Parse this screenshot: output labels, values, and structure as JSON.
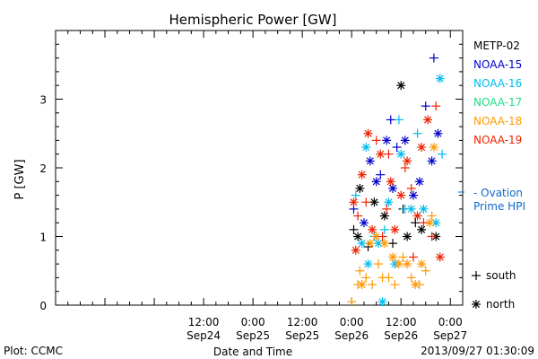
{
  "chart_data": {
    "type": "scatter",
    "title": "Hemispheric Power [GW]",
    "ylabel": "P [GW]",
    "xlabel": "Date and Time",
    "ylim": [
      0,
      4
    ],
    "xlim": [
      "2013-09-23 00:00",
      "2013-09-27 03:00"
    ],
    "y_ticks": [
      "0",
      "1",
      "2",
      "3"
    ],
    "x_ticks": [
      {
        "time": "12:00",
        "date": "Sep24"
      },
      {
        "time": "0:00",
        "date": "Sep25"
      },
      {
        "time": "12:00",
        "date": "Sep25"
      },
      {
        "time": "0:00",
        "date": "Sep26"
      },
      {
        "time": "12:00",
        "date": "Sep26"
      },
      {
        "time": "0:00",
        "date": "Sep27"
      }
    ],
    "legend": [
      "METP-02",
      "NOAA-15",
      "NOAA-16",
      "NOAA-17",
      "NOAA-18",
      "NOAA-19"
    ],
    "marker_legend": {
      "south": "south",
      "north": "north"
    },
    "ovation_label": "- Ovation Prime HPI",
    "colors": {
      "METP-02": "#000000",
      "NOAA-15": "#0000cc",
      "NOAA-16": "#00bbee",
      "NOAA-17": "#22dd88",
      "NOAA-18": "#ff9900",
      "NOAA-19": "#ee2200",
      "ovation": "#1166cc",
      "axis": "#000000"
    },
    "series": [
      {
        "name": "METP-02",
        "points": [
          {
            "x": "2013-09-26 00:30",
            "y": 1.1,
            "m": "south"
          },
          {
            "x": "2013-09-26 01:30",
            "y": 1.0,
            "m": "north"
          },
          {
            "x": "2013-09-26 02:00",
            "y": 1.7,
            "m": "north"
          },
          {
            "x": "2013-09-26 04:00",
            "y": 0.85,
            "m": "south"
          },
          {
            "x": "2013-09-26 05:30",
            "y": 1.5,
            "m": "north"
          },
          {
            "x": "2013-09-26 08:00",
            "y": 1.3,
            "m": "north"
          },
          {
            "x": "2013-09-26 10:00",
            "y": 0.9,
            "m": "south"
          },
          {
            "x": "2013-09-26 12:00",
            "y": 3.2,
            "m": "north"
          },
          {
            "x": "2013-09-26 13:30",
            "y": 1.0,
            "m": "north"
          },
          {
            "x": "2013-09-26 15:30",
            "y": 1.2,
            "m": "south"
          },
          {
            "x": "2013-09-26 17:00",
            "y": 1.1,
            "m": "north"
          },
          {
            "x": "2013-09-26 20:30",
            "y": 1.0,
            "m": "north"
          },
          {
            "x": "2013-09-26 12:30",
            "y": 1.4,
            "m": "south"
          }
        ]
      },
      {
        "name": "NOAA-15",
        "points": [
          {
            "x": "2013-09-26 00:30",
            "y": 1.4,
            "m": "south"
          },
          {
            "x": "2013-09-26 03:00",
            "y": 1.2,
            "m": "north"
          },
          {
            "x": "2013-09-26 04:30",
            "y": 2.1,
            "m": "north"
          },
          {
            "x": "2013-09-26 06:00",
            "y": 1.8,
            "m": "north"
          },
          {
            "x": "2013-09-26 07:00",
            "y": 1.9,
            "m": "south"
          },
          {
            "x": "2013-09-26 08:30",
            "y": 2.4,
            "m": "north"
          },
          {
            "x": "2013-09-26 09:30",
            "y": 2.7,
            "m": "south"
          },
          {
            "x": "2013-09-26 10:00",
            "y": 1.7,
            "m": "north"
          },
          {
            "x": "2013-09-26 11:00",
            "y": 2.3,
            "m": "south"
          },
          {
            "x": "2013-09-26 13:00",
            "y": 2.4,
            "m": "north"
          },
          {
            "x": "2013-09-26 15:00",
            "y": 1.6,
            "m": "north"
          },
          {
            "x": "2013-09-26 16:30",
            "y": 1.8,
            "m": "north"
          },
          {
            "x": "2013-09-26 18:00",
            "y": 2.9,
            "m": "south"
          },
          {
            "x": "2013-09-26 19:30",
            "y": 2.1,
            "m": "north"
          },
          {
            "x": "2013-09-26 20:00",
            "y": 3.6,
            "m": "south"
          },
          {
            "x": "2013-09-26 21:00",
            "y": 2.5,
            "m": "north"
          }
        ]
      },
      {
        "name": "NOAA-16",
        "points": [
          {
            "x": "2013-09-26 01:00",
            "y": 1.6,
            "m": "south"
          },
          {
            "x": "2013-09-26 02:30",
            "y": 0.9,
            "m": "north"
          },
          {
            "x": "2013-09-26 03:30",
            "y": 2.3,
            "m": "north"
          },
          {
            "x": "2013-09-26 04:00",
            "y": 0.6,
            "m": "north"
          },
          {
            "x": "2013-09-26 05:30",
            "y": 1.0,
            "m": "south"
          },
          {
            "x": "2013-09-26 06:30",
            "y": 0.9,
            "m": "north"
          },
          {
            "x": "2013-09-26 07:30",
            "y": 0.05,
            "m": "north"
          },
          {
            "x": "2013-09-26 08:00",
            "y": 1.1,
            "m": "south"
          },
          {
            "x": "2013-09-26 09:00",
            "y": 1.5,
            "m": "north"
          },
          {
            "x": "2013-09-26 10:30",
            "y": 0.6,
            "m": "north"
          },
          {
            "x": "2013-09-26 11:30",
            "y": 2.7,
            "m": "south"
          },
          {
            "x": "2013-09-26 12:00",
            "y": 2.2,
            "m": "north"
          },
          {
            "x": "2013-09-26 13:00",
            "y": 1.4,
            "m": "south"
          },
          {
            "x": "2013-09-26 14:30",
            "y": 1.4,
            "m": "north"
          },
          {
            "x": "2013-09-26 16:00",
            "y": 2.5,
            "m": "south"
          },
          {
            "x": "2013-09-26 17:30",
            "y": 1.4,
            "m": "north"
          },
          {
            "x": "2013-09-26 20:30",
            "y": 1.2,
            "m": "north"
          },
          {
            "x": "2013-09-26 21:30",
            "y": 3.3,
            "m": "north"
          },
          {
            "x": "2013-09-26 22:00",
            "y": 2.2,
            "m": "south"
          }
        ]
      },
      {
        "name": "NOAA-18",
        "points": [
          {
            "x": "2013-09-26 00:00",
            "y": 0.05,
            "m": "south"
          },
          {
            "x": "2013-09-26 01:30",
            "y": 0.3,
            "m": "south"
          },
          {
            "x": "2013-09-26 02:00",
            "y": 0.5,
            "m": "south"
          },
          {
            "x": "2013-09-26 02:30",
            "y": 0.3,
            "m": "north"
          },
          {
            "x": "2013-09-26 03:30",
            "y": 0.4,
            "m": "south"
          },
          {
            "x": "2013-09-26 04:30",
            "y": 0.9,
            "m": "north"
          },
          {
            "x": "2013-09-26 05:00",
            "y": 0.3,
            "m": "south"
          },
          {
            "x": "2013-09-26 06:00",
            "y": 1.0,
            "m": "north"
          },
          {
            "x": "2013-09-26 06:30",
            "y": 0.6,
            "m": "south"
          },
          {
            "x": "2013-09-26 07:30",
            "y": 0.4,
            "m": "south"
          },
          {
            "x": "2013-09-26 08:00",
            "y": 0.9,
            "m": "north"
          },
          {
            "x": "2013-09-26 09:00",
            "y": 0.4,
            "m": "south"
          },
          {
            "x": "2013-09-26 10:00",
            "y": 0.7,
            "m": "north"
          },
          {
            "x": "2013-09-26 10:30",
            "y": 0.3,
            "m": "south"
          },
          {
            "x": "2013-09-26 11:30",
            "y": 0.6,
            "m": "north"
          },
          {
            "x": "2013-09-26 12:30",
            "y": 0.7,
            "m": "south"
          },
          {
            "x": "2013-09-26 13:30",
            "y": 0.6,
            "m": "north"
          },
          {
            "x": "2013-09-26 14:30",
            "y": 0.4,
            "m": "south"
          },
          {
            "x": "2013-09-26 15:30",
            "y": 0.3,
            "m": "north"
          },
          {
            "x": "2013-09-26 16:30",
            "y": 0.3,
            "m": "south"
          },
          {
            "x": "2013-09-26 17:00",
            "y": 0.6,
            "m": "north"
          },
          {
            "x": "2013-09-26 18:00",
            "y": 0.5,
            "m": "south"
          },
          {
            "x": "2013-09-26 19:00",
            "y": 1.2,
            "m": "north"
          },
          {
            "x": "2013-09-26 20:00",
            "y": 2.3,
            "m": "north"
          },
          {
            "x": "2013-09-26 19:30",
            "y": 1.3,
            "m": "south"
          }
        ]
      },
      {
        "name": "NOAA-19",
        "points": [
          {
            "x": "2013-09-26 00:30",
            "y": 1.5,
            "m": "north"
          },
          {
            "x": "2013-09-26 01:00",
            "y": 0.8,
            "m": "north"
          },
          {
            "x": "2013-09-26 01:30",
            "y": 1.3,
            "m": "south"
          },
          {
            "x": "2013-09-26 02:30",
            "y": 1.9,
            "m": "north"
          },
          {
            "x": "2013-09-26 03:30",
            "y": 1.5,
            "m": "south"
          },
          {
            "x": "2013-09-26 04:00",
            "y": 2.5,
            "m": "north"
          },
          {
            "x": "2013-09-26 05:00",
            "y": 1.1,
            "m": "north"
          },
          {
            "x": "2013-09-26 06:00",
            "y": 2.4,
            "m": "south"
          },
          {
            "x": "2013-09-26 07:00",
            "y": 2.2,
            "m": "north"
          },
          {
            "x": "2013-09-26 07:30",
            "y": 1.0,
            "m": "south"
          },
          {
            "x": "2013-09-26 08:30",
            "y": 1.4,
            "m": "south"
          },
          {
            "x": "2013-09-26 09:00",
            "y": 2.2,
            "m": "south"
          },
          {
            "x": "2013-09-26 09:30",
            "y": 1.8,
            "m": "north"
          },
          {
            "x": "2013-09-26 10:30",
            "y": 1.1,
            "m": "north"
          },
          {
            "x": "2013-09-26 12:00",
            "y": 1.6,
            "m": "north"
          },
          {
            "x": "2013-09-26 13:00",
            "y": 2.0,
            "m": "south"
          },
          {
            "x": "2013-09-26 13:30",
            "y": 2.1,
            "m": "north"
          },
          {
            "x": "2013-09-26 14:30",
            "y": 1.7,
            "m": "south"
          },
          {
            "x": "2013-09-26 15:00",
            "y": 0.7,
            "m": "south"
          },
          {
            "x": "2013-09-26 16:00",
            "y": 1.3,
            "m": "north"
          },
          {
            "x": "2013-09-26 17:00",
            "y": 2.3,
            "m": "north"
          },
          {
            "x": "2013-09-26 17:30",
            "y": 1.2,
            "m": "south"
          },
          {
            "x": "2013-09-26 18:30",
            "y": 2.7,
            "m": "north"
          },
          {
            "x": "2013-09-26 19:30",
            "y": 1.0,
            "m": "south"
          },
          {
            "x": "2013-09-26 20:30",
            "y": 2.9,
            "m": "south"
          },
          {
            "x": "2013-09-26 21:30",
            "y": 0.7,
            "m": "north"
          }
        ]
      }
    ]
  },
  "footer": {
    "plot_label": "Plot: CCMC",
    "timestamp": "2013/09/27 01:30:09"
  }
}
